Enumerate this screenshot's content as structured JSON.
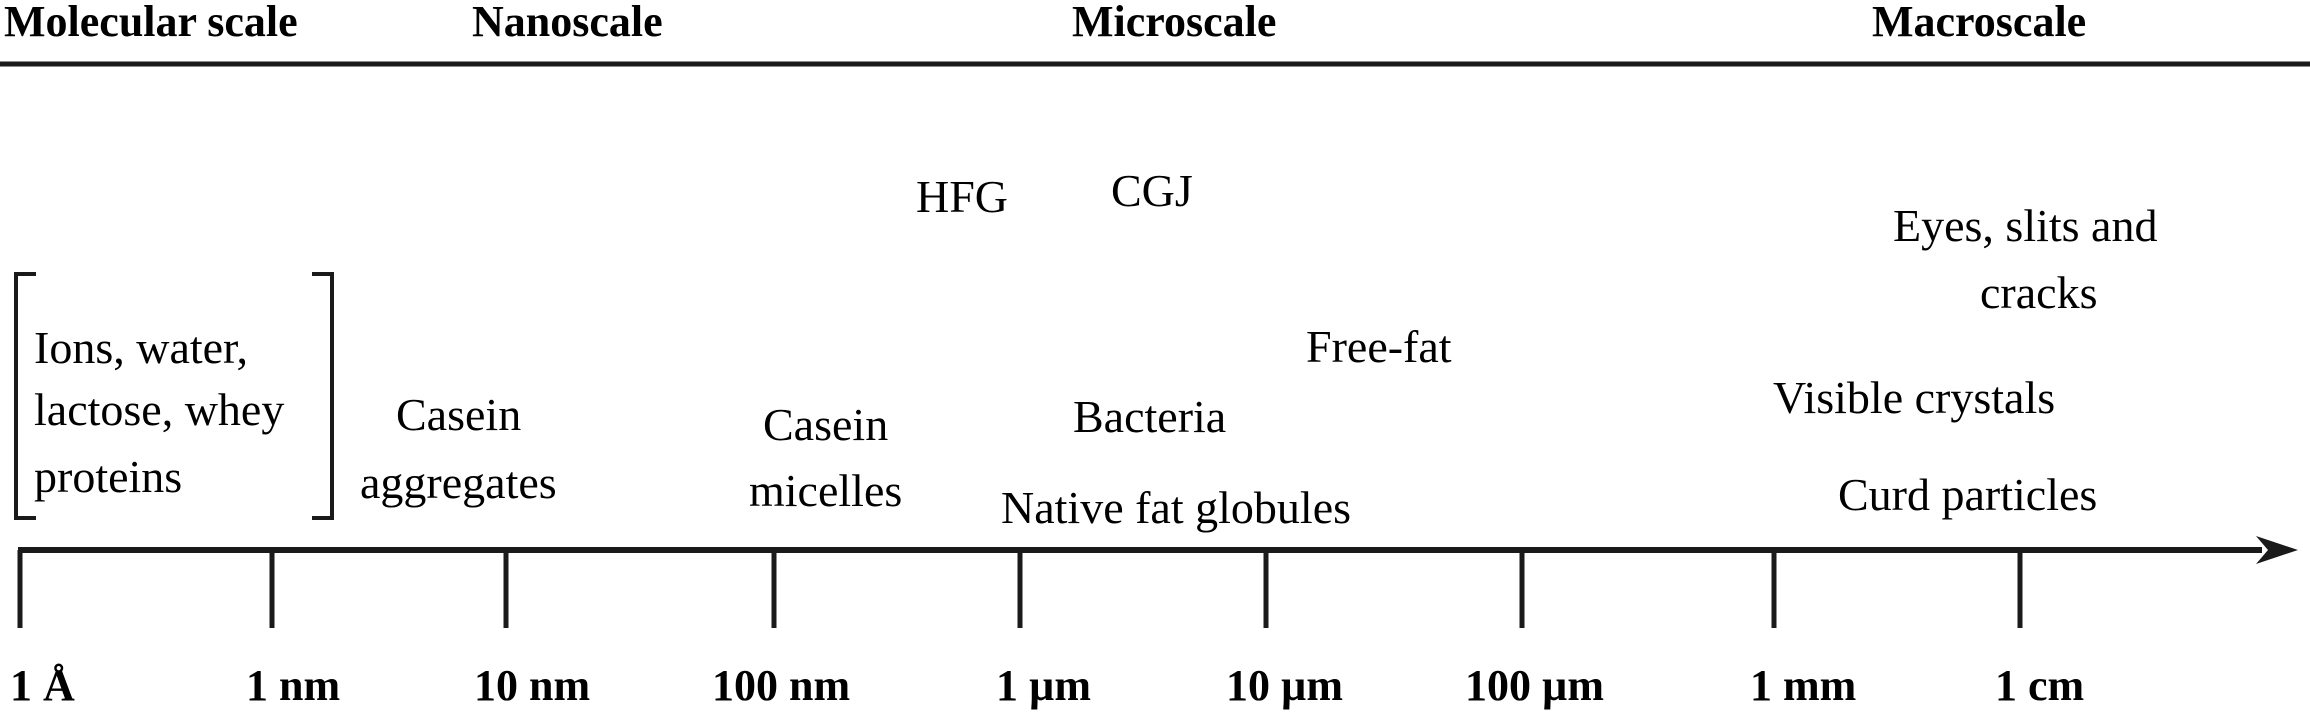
{
  "scale_headers": [
    "Molecular scale",
    "Nanoscale",
    "Microscale",
    "Macroscale"
  ],
  "axis_ticks": [
    "1 Å",
    "1 nm",
    "10 nm",
    "100 nm",
    "1 µm",
    "10 µm",
    "100 µm",
    "1 mm",
    "1 cm"
  ],
  "items": {
    "ions": [
      "Ions, water,",
      "lactose, whey",
      "proteins"
    ],
    "casein_aggregates": [
      "Casein",
      "aggregates"
    ],
    "casein_micelles": [
      "Casein",
      "micelles"
    ],
    "hfg": "HFG",
    "cgj": "CGJ",
    "bacteria": "Bacteria",
    "native_fat": "Native fat globules",
    "free_fat": "Free-fat",
    "eyes": [
      "Eyes, slits and",
      "cracks"
    ],
    "visible_crystals": "Visible crystals",
    "curd_particles": "Curd particles"
  }
}
